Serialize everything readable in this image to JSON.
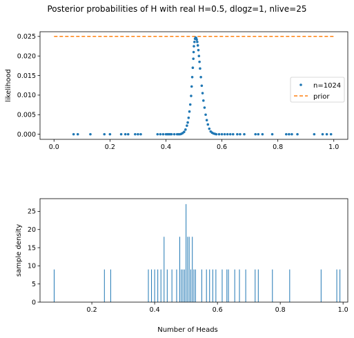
{
  "suptitle": "Posterior probabilities of H with real H=0.5, dlogz=1, nlive=25",
  "chart_data": [
    {
      "type": "scatter",
      "xlabel": "",
      "ylabel": "likelihood",
      "xlim": [
        -0.05,
        1.05
      ],
      "ylim": [
        -0.0013,
        0.0262
      ],
      "xticks": [
        0.0,
        0.2,
        0.4,
        0.6,
        0.8,
        1.0
      ],
      "xtick_labels": [
        "0.0",
        "0.2",
        "0.4",
        "0.6",
        "0.8",
        "1.0"
      ],
      "yticks": [
        0.0,
        0.005,
        0.01,
        0.015,
        0.02,
        0.025
      ],
      "ytick_labels": [
        "0.000",
        "0.005",
        "0.010",
        "0.015",
        "0.020",
        "0.025"
      ],
      "legend_position": "center-right",
      "series": [
        {
          "name": "n=1024",
          "style": "points",
          "color": "#1f77b4",
          "points": [
            [
              0.07,
              0
            ],
            [
              0.085,
              0
            ],
            [
              0.13,
              0
            ],
            [
              0.18,
              0
            ],
            [
              0.2,
              0
            ],
            [
              0.24,
              0
            ],
            [
              0.255,
              0
            ],
            [
              0.265,
              0
            ],
            [
              0.29,
              0
            ],
            [
              0.3,
              0
            ],
            [
              0.31,
              0
            ],
            [
              0.37,
              0
            ],
            [
              0.38,
              0
            ],
            [
              0.39,
              0
            ],
            [
              0.4,
              0
            ],
            [
              0.405,
              0
            ],
            [
              0.41,
              0
            ],
            [
              0.415,
              0
            ],
            [
              0.42,
              0
            ],
            [
              0.43,
              0
            ],
            [
              0.44,
              0
            ],
            [
              0.445,
              0
            ],
            [
              0.45,
              0
            ],
            [
              0.455,
              0.0001
            ],
            [
              0.46,
              0.0003
            ],
            [
              0.465,
              0.0006
            ],
            [
              0.47,
              0.0012
            ],
            [
              0.475,
              0.0022
            ],
            [
              0.478,
              0.003
            ],
            [
              0.481,
              0.0042
            ],
            [
              0.484,
              0.0058
            ],
            [
              0.487,
              0.0076
            ],
            [
              0.49,
              0.0098
            ],
            [
              0.492,
              0.0122
            ],
            [
              0.494,
              0.0146
            ],
            [
              0.496,
              0.017
            ],
            [
              0.498,
              0.0193
            ],
            [
              0.499,
              0.021
            ],
            [
              0.5,
              0.0225
            ],
            [
              0.502,
              0.0236
            ],
            [
              0.504,
              0.0244
            ],
            [
              0.506,
              0.0247
            ],
            [
              0.508,
              0.0246
            ],
            [
              0.51,
              0.0242
            ],
            [
              0.512,
              0.0236
            ],
            [
              0.514,
              0.0227
            ],
            [
              0.516,
              0.0215
            ],
            [
              0.518,
              0.02
            ],
            [
              0.52,
              0.0185
            ],
            [
              0.522,
              0.0168
            ],
            [
              0.525,
              0.0146
            ],
            [
              0.528,
              0.0124
            ],
            [
              0.531,
              0.0105
            ],
            [
              0.534,
              0.0086
            ],
            [
              0.538,
              0.0068
            ],
            [
              0.542,
              0.005
            ],
            [
              0.546,
              0.0036
            ],
            [
              0.55,
              0.0025
            ],
            [
              0.555,
              0.0014
            ],
            [
              0.56,
              0.0007
            ],
            [
              0.565,
              0.0004
            ],
            [
              0.57,
              0.0002
            ],
            [
              0.575,
              0.0001
            ],
            [
              0.58,
              0
            ],
            [
              0.59,
              0
            ],
            [
              0.6,
              0
            ],
            [
              0.61,
              0
            ],
            [
              0.62,
              0
            ],
            [
              0.63,
              0
            ],
            [
              0.64,
              0
            ],
            [
              0.655,
              0
            ],
            [
              0.665,
              0
            ],
            [
              0.68,
              0
            ],
            [
              0.72,
              0
            ],
            [
              0.73,
              0
            ],
            [
              0.745,
              0
            ],
            [
              0.78,
              0
            ],
            [
              0.83,
              0
            ],
            [
              0.84,
              0
            ],
            [
              0.85,
              0
            ],
            [
              0.87,
              0
            ],
            [
              0.93,
              0
            ],
            [
              0.96,
              0
            ],
            [
              0.975,
              0
            ],
            [
              0.99,
              0
            ]
          ]
        },
        {
          "name": "prior",
          "style": "dashed-line",
          "color": "#ff7f0e",
          "points": [
            [
              0.0,
              0.025
            ],
            [
              1.0,
              0.025
            ]
          ]
        }
      ]
    },
    {
      "type": "bar",
      "xlabel": "Number of Heads",
      "ylabel": "sample density",
      "xlim": [
        0.035,
        1.015
      ],
      "ylim": [
        0,
        28.5
      ],
      "xticks": [
        0.2,
        0.4,
        0.6,
        0.8,
        1.0
      ],
      "xtick_labels": [
        "0.2",
        "0.4",
        "0.6",
        "0.8",
        "1.0"
      ],
      "yticks": [
        0,
        5,
        10,
        15,
        20,
        25
      ],
      "ytick_labels": [
        "0",
        "5",
        "10",
        "15",
        "20",
        "25"
      ],
      "color": "#1f77b4",
      "bars": [
        [
          0.08,
          9
        ],
        [
          0.24,
          9
        ],
        [
          0.26,
          9
        ],
        [
          0.38,
          9
        ],
        [
          0.39,
          9
        ],
        [
          0.4,
          9
        ],
        [
          0.41,
          9
        ],
        [
          0.42,
          9
        ],
        [
          0.43,
          18
        ],
        [
          0.44,
          9
        ],
        [
          0.455,
          9
        ],
        [
          0.47,
          9
        ],
        [
          0.48,
          18
        ],
        [
          0.485,
          9
        ],
        [
          0.49,
          9
        ],
        [
          0.495,
          9
        ],
        [
          0.5,
          27
        ],
        [
          0.505,
          18
        ],
        [
          0.51,
          18
        ],
        [
          0.515,
          9
        ],
        [
          0.52,
          18
        ],
        [
          0.525,
          9
        ],
        [
          0.53,
          9
        ],
        [
          0.55,
          9
        ],
        [
          0.565,
          9
        ],
        [
          0.575,
          9
        ],
        [
          0.585,
          9
        ],
        [
          0.595,
          9
        ],
        [
          0.615,
          9
        ],
        [
          0.63,
          9
        ],
        [
          0.635,
          9
        ],
        [
          0.655,
          9
        ],
        [
          0.67,
          9
        ],
        [
          0.69,
          9
        ],
        [
          0.72,
          9
        ],
        [
          0.73,
          9
        ],
        [
          0.775,
          9
        ],
        [
          0.83,
          9
        ],
        [
          0.93,
          9
        ],
        [
          0.98,
          9
        ],
        [
          0.99,
          9
        ]
      ]
    }
  ]
}
